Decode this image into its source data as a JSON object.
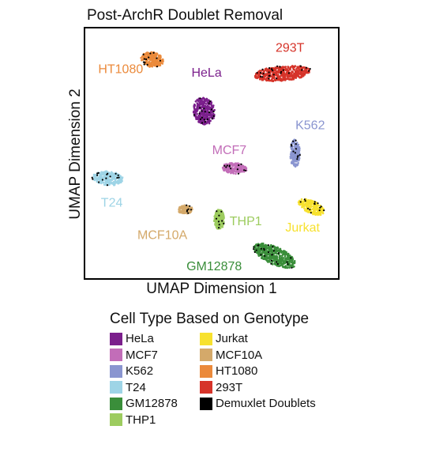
{
  "chart_data": {
    "type": "scatter",
    "title": "Post-ArchR Doublet Removal",
    "xlabel": "UMAP Dimension 1",
    "ylabel": "UMAP Dimension 2",
    "xlim": [
      0,
      10
    ],
    "ylim": [
      0,
      10
    ],
    "grid": false,
    "axis_ticks": false,
    "legend_title": "Cell Type Based on Genotype",
    "legend_position": "bottom",
    "doublet_color": "#000000",
    "clusters": [
      {
        "name": "HeLa",
        "color": "#7B1F8C",
        "cx": 4.7,
        "cy": 6.7,
        "rx": 0.42,
        "ry": 0.55,
        "rot": 10,
        "label_x": 4.8,
        "label_y": 8.2
      },
      {
        "name": "MCF7",
        "color": "#C26DB8",
        "cx": 5.9,
        "cy": 4.4,
        "rx": 0.5,
        "ry": 0.22,
        "rot": -5,
        "label_x": 5.7,
        "label_y": 5.1
      },
      {
        "name": "K562",
        "color": "#8A95D0",
        "cx": 8.3,
        "cy": 5.0,
        "rx": 0.2,
        "ry": 0.55,
        "rot": 0,
        "label_x": 8.9,
        "label_y": 6.1
      },
      {
        "name": "T24",
        "color": "#9ED4E6",
        "cx": 0.9,
        "cy": 4.0,
        "rx": 0.6,
        "ry": 0.28,
        "rot": -5,
        "label_x": 1.05,
        "label_y": 3.0
      },
      {
        "name": "GM12878",
        "color": "#3A8E3A",
        "cx": 7.5,
        "cy": 0.9,
        "rx": 0.9,
        "ry": 0.35,
        "rot": -25,
        "label_x": 5.1,
        "label_y": 0.45
      },
      {
        "name": "THP1",
        "color": "#9DCC5F",
        "cx": 5.3,
        "cy": 2.35,
        "rx": 0.2,
        "ry": 0.4,
        "rot": 0,
        "label_x": 6.35,
        "label_y": 2.25
      },
      {
        "name": "Jurkat",
        "color": "#F7E12E",
        "cx": 8.95,
        "cy": 2.85,
        "rx": 0.55,
        "ry": 0.25,
        "rot": -25,
        "label_x": 8.6,
        "label_y": 2.0
      },
      {
        "name": "MCF10A",
        "color": "#D4A96A",
        "cx": 3.95,
        "cy": 2.75,
        "rx": 0.3,
        "ry": 0.17,
        "rot": 0,
        "label_x": 3.05,
        "label_y": 1.7
      },
      {
        "name": "HT1080",
        "color": "#EB8A3B",
        "cx": 2.65,
        "cy": 8.75,
        "rx": 0.45,
        "ry": 0.3,
        "rot": -10,
        "label_x": 1.4,
        "label_y": 8.35
      },
      {
        "name": "293T",
        "color": "#D6342A",
        "cx": 7.8,
        "cy": 8.2,
        "rx": 1.1,
        "ry": 0.3,
        "rot": 5,
        "label_x": 8.1,
        "label_y": 9.2
      },
      {
        "name": "Demuxlet Doublets",
        "color": "#000000"
      }
    ]
  }
}
